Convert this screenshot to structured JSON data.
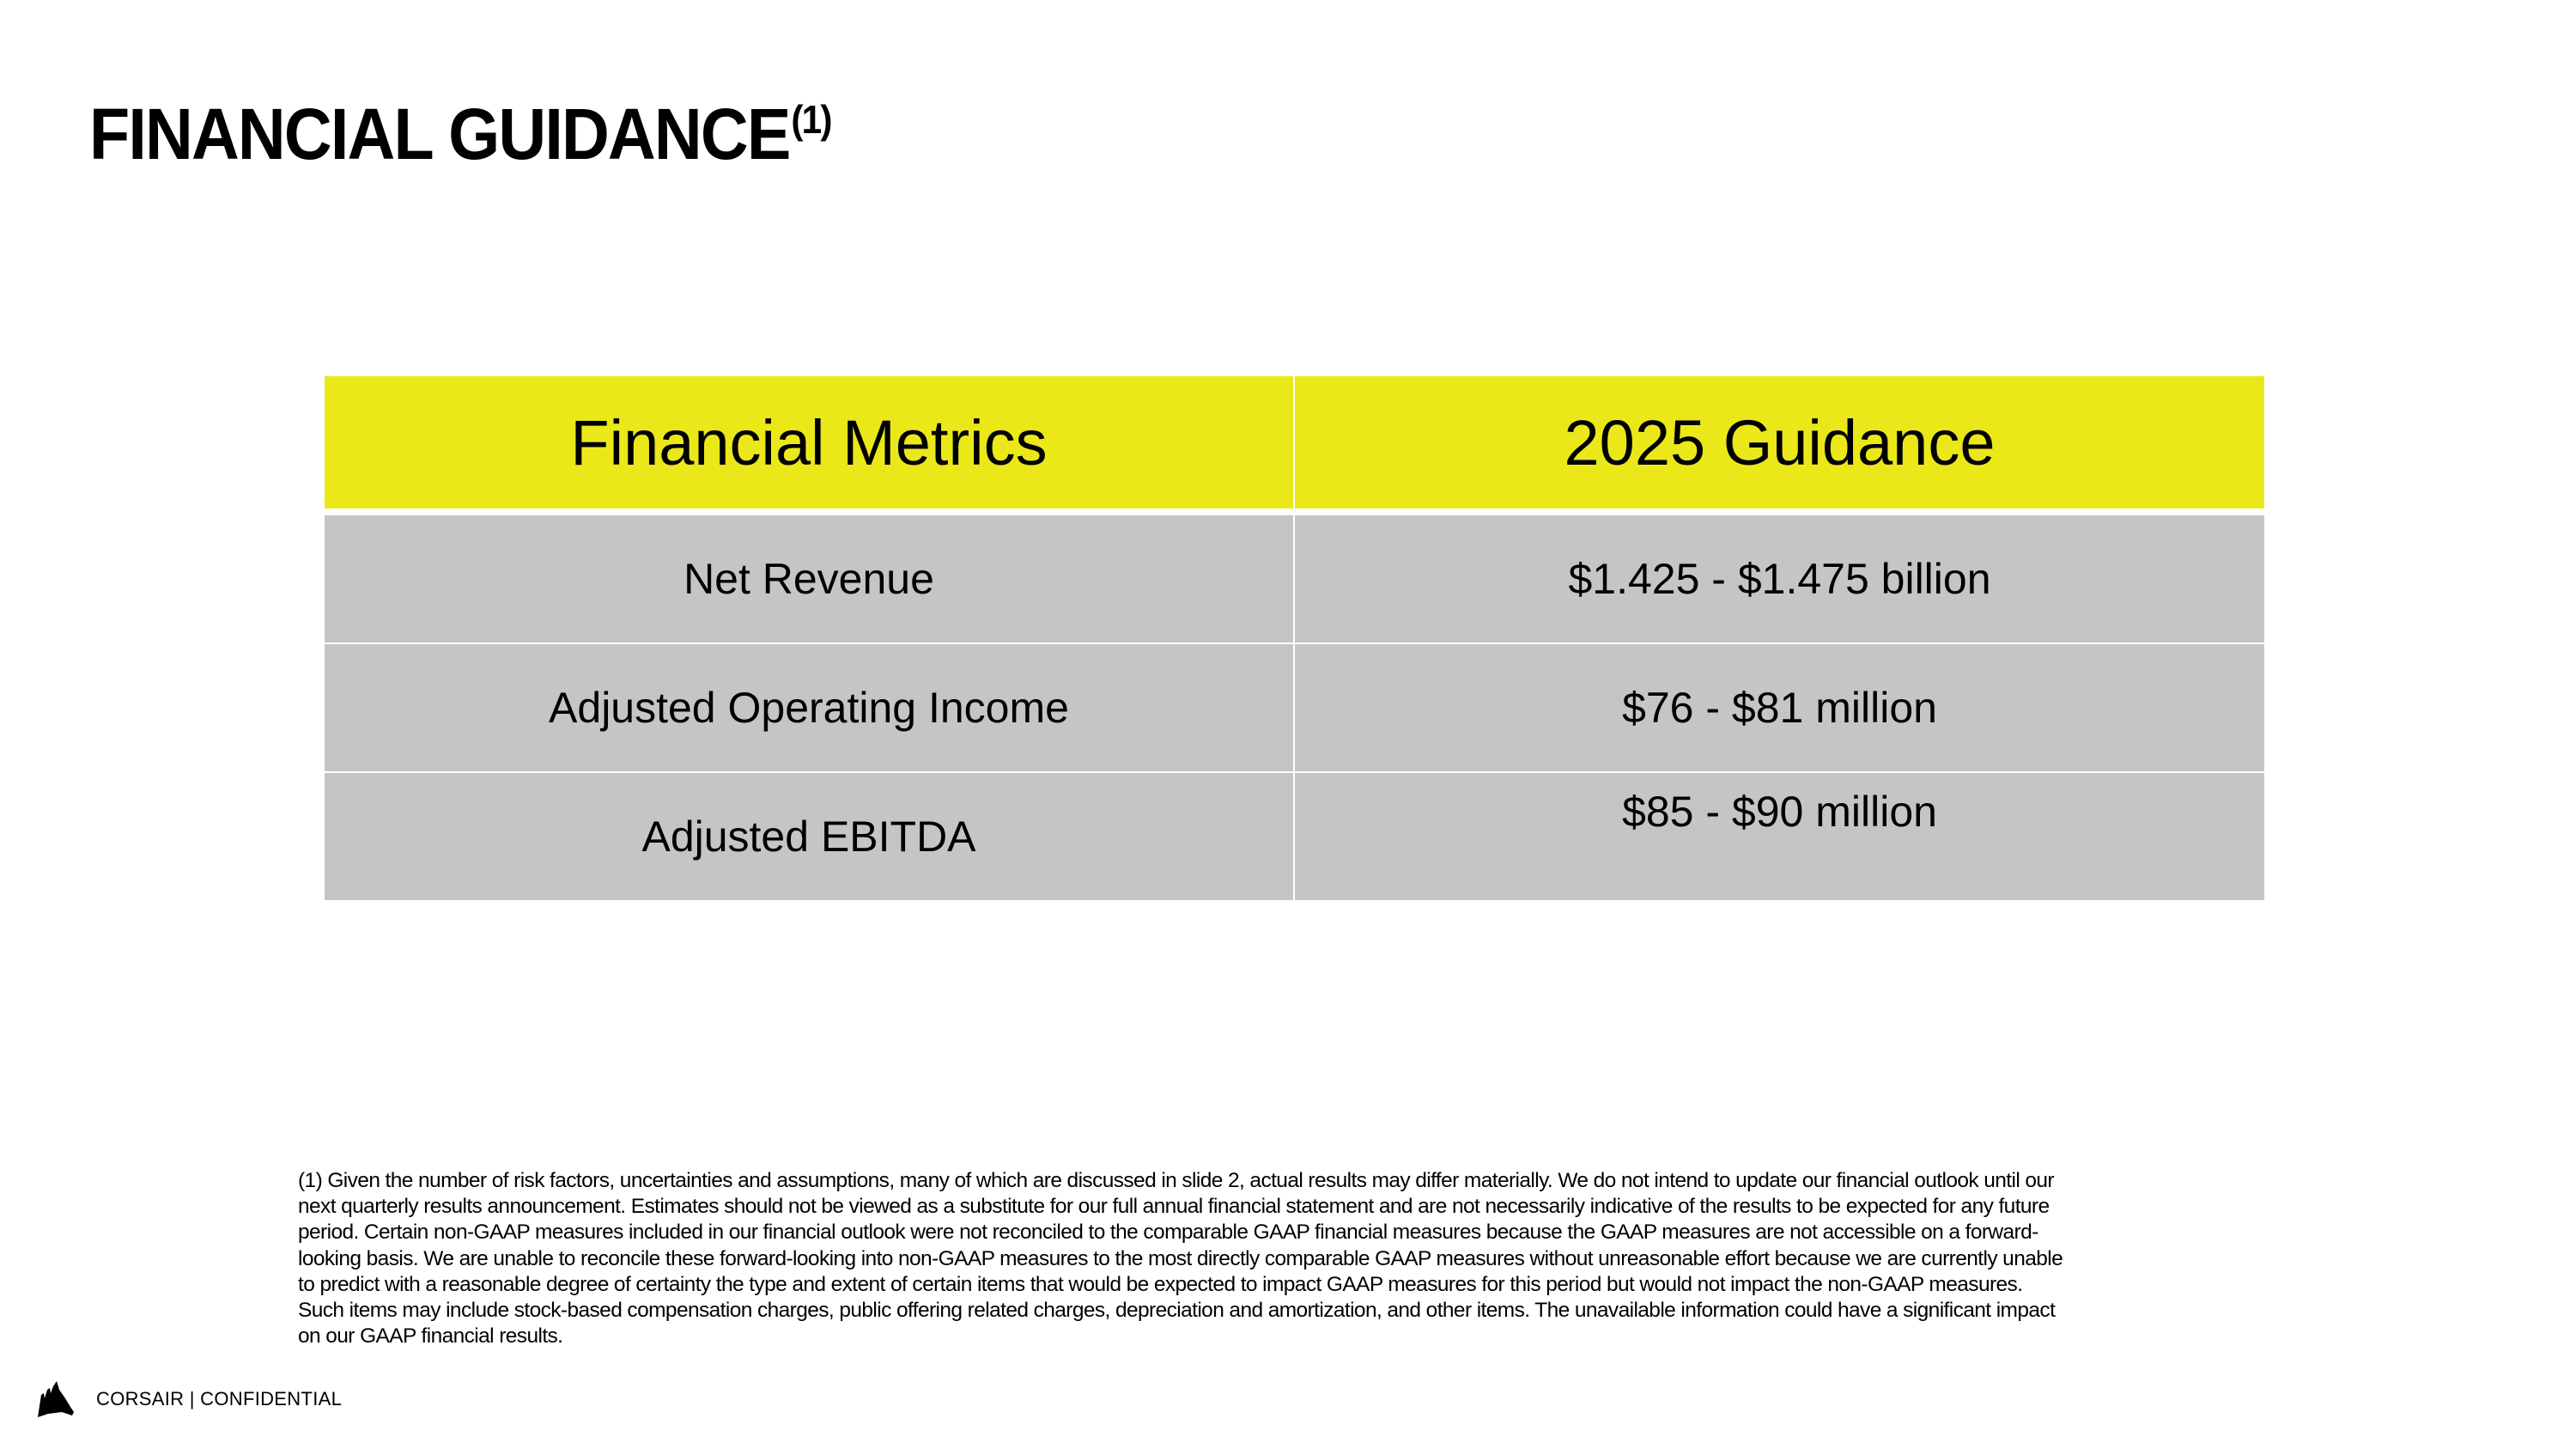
{
  "title": {
    "text": "FINANCIAL GUIDANCE",
    "superscript": "(1)"
  },
  "table": {
    "headers": [
      "Financial Metrics",
      "2025 Guidance"
    ],
    "rows": [
      {
        "metric": "Net Revenue",
        "guidance": "$1.425 - $1.475 billion"
      },
      {
        "metric": "Adjusted Operating Income",
        "guidance": "$76 - $81 million"
      },
      {
        "metric": "Adjusted EBITDA",
        "guidance": "$85 - $90 million"
      }
    ],
    "colors": {
      "header_bg": "#ebe81a",
      "row_bg": "#c4c5c4"
    }
  },
  "footnote": {
    "lines": [
      "(1) Given the number of risk factors, uncertainties and assumptions, many of which are discussed in slide 2, actual results may differ materially. We do not intend to update our financial outlook until our",
      "next quarterly results announcement. Estimates should not be viewed as a substitute for our full annual financial statement and are not necessarily indicative of the results to be expected for any future",
      "period. Certain non-GAAP measures included in our financial outlook were not reconciled to the comparable GAAP financial measures because the GAAP measures are not accessible on a forward-",
      "looking basis. We are unable to reconcile these forward-looking into non-GAAP measures to the most directly comparable GAAP measures without unreasonable effort because we are currently unable",
      "to predict with a reasonable degree of certainty the type and extent of certain items that would be expected to impact GAAP measures for this period but would not impact the non-GAAP measures.",
      "Such items may include stock-based compensation charges, public offering related charges, depreciation and amortization, and other items. The unavailable information could have a significant impact",
      "on our GAAP financial results."
    ]
  },
  "footer": {
    "logo_icon": "corsair-sails-logo",
    "text": "CORSAIR | CONFIDENTIAL"
  }
}
